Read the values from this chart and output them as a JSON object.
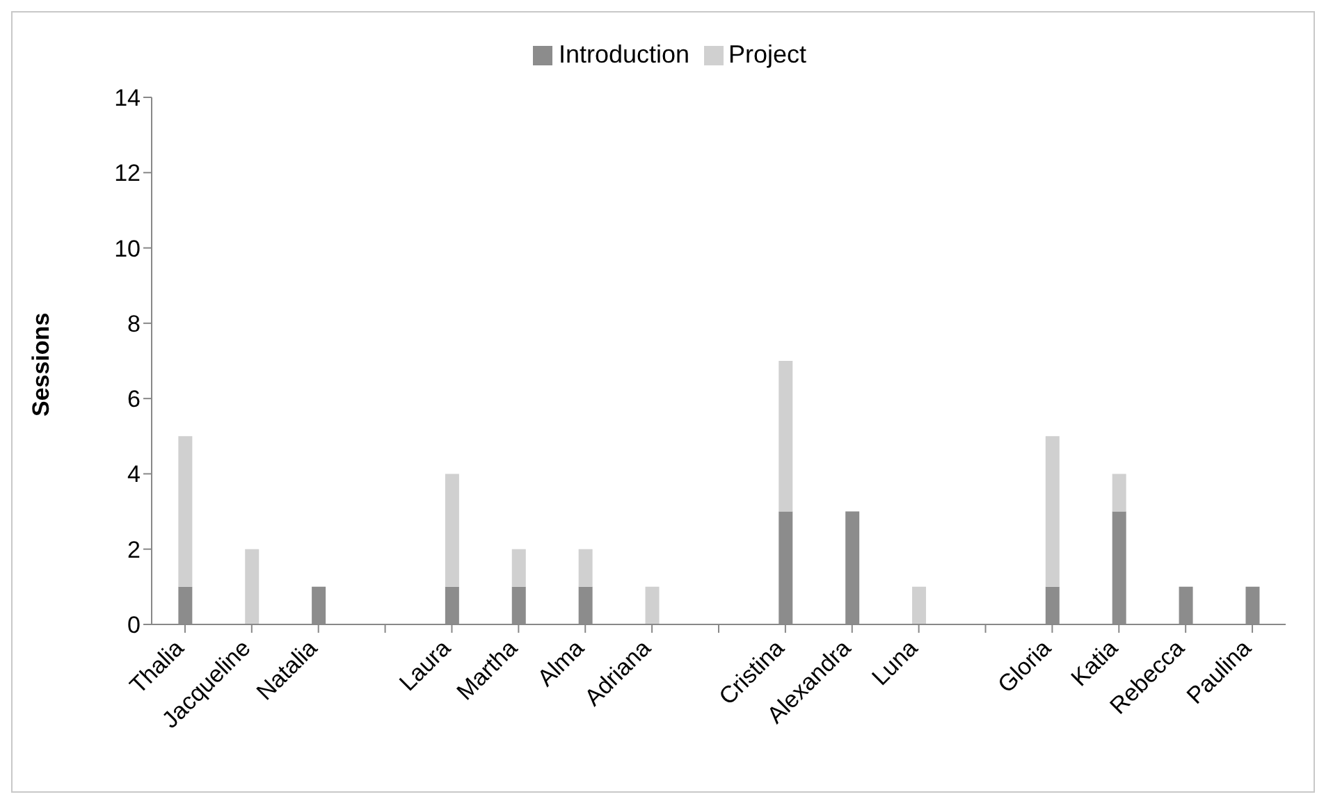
{
  "chart_data": {
    "type": "bar",
    "stacked": true,
    "ylabel": "Sessions",
    "categories": [
      "Thalia",
      "Jacqueline",
      "Natalia",
      null,
      "Laura",
      "Martha",
      "Alma",
      "Adriana",
      null,
      "Cristina",
      "Alexandra",
      "Luna",
      null,
      "Gloria",
      "Katia",
      "Rebecca",
      "Paulina"
    ],
    "series": [
      {
        "name": "Introduction",
        "color": "#8c8c8c",
        "values": [
          1,
          0,
          1,
          null,
          1,
          1,
          1,
          0,
          null,
          3,
          3,
          0,
          null,
          1,
          3,
          1,
          1
        ]
      },
      {
        "name": "Project",
        "color": "#d0d0d0",
        "values": [
          4,
          2,
          0,
          null,
          3,
          1,
          1,
          1,
          null,
          4,
          0,
          1,
          null,
          4,
          1,
          0,
          0
        ]
      }
    ],
    "ylim": [
      0,
      14
    ],
    "yticks": [
      0,
      2,
      4,
      6,
      8,
      10,
      12,
      14
    ],
    "grid": false,
    "legend": "top"
  }
}
